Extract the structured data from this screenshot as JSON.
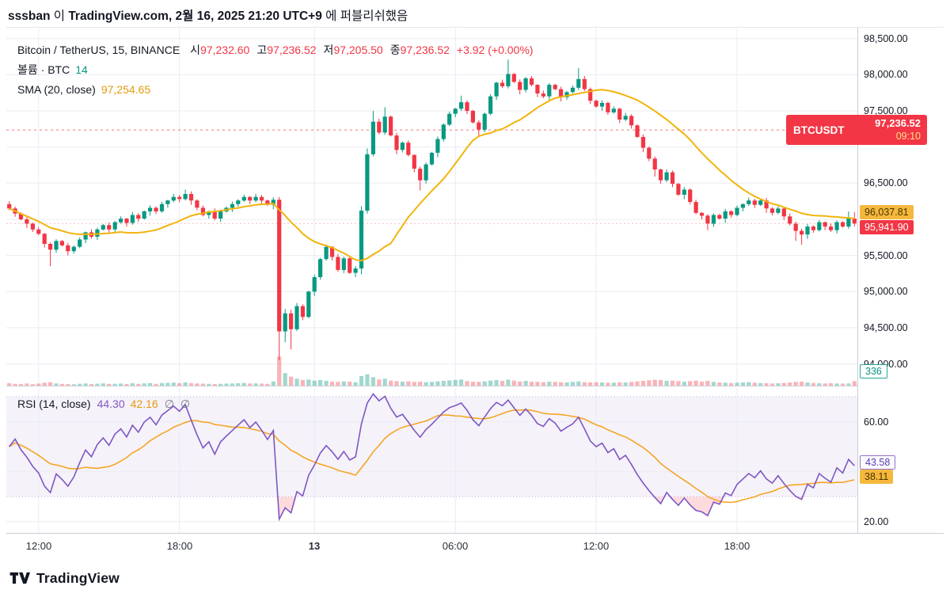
{
  "header": {
    "author": "sssban",
    "particle1": "이",
    "source": "TradingView.com, 2월 16, 2025 21:20 UTC+9",
    "particle2": "에 퍼블리쉬했음"
  },
  "legend": {
    "symbol": "Bitcoin / TetherUS, 15, BINANCE",
    "ohlc": {
      "o_l": "시",
      "o_v": "97,232.60",
      "h_l": "고",
      "h_v": "97,236.52",
      "l_l": "저",
      "l_v": "97,205.50",
      "c_l": "종",
      "c_v": "97,236.52",
      "chg": "+3.92 (+0.00%)"
    },
    "volume_label": "볼륨 · BTC",
    "volume_value": "14",
    "sma_label": "SMA (20, close)",
    "sma_value": "97,254.65"
  },
  "rsi_legend": {
    "label": "RSI (14, close)",
    "v1": "44.30",
    "v2": "42.16",
    "empty1": "∅",
    "empty2": "∅"
  },
  "axis": {
    "badge_symbol": "BTCUSDT",
    "badge_price": "97,236.52",
    "badge_countdown": "09:10",
    "sma_label": "96,037.81",
    "last_price": "95,941.90",
    "volume": "336",
    "rsi_value": "43.58",
    "rsi_ma_value": "38.11"
  },
  "footer": {
    "brand": "TradingView"
  },
  "colors": {
    "up": "#089981",
    "down": "#f23645",
    "sma_line": "#f2b40c",
    "rsi_line": "#7e57c2",
    "rsi_ma_line": "#f5a623",
    "badge_bg": "#f23645"
  },
  "chart_data": {
    "type": "candlestick",
    "title": "Bitcoin / TetherUS, 15, BINANCE",
    "symbol": "BTCUSDT",
    "interval_minutes": 15,
    "exchange": "BINANCE",
    "x_labels": [
      {
        "i": 5,
        "t": "12:00"
      },
      {
        "i": 29,
        "t": "18:00"
      },
      {
        "i": 52,
        "t": "13",
        "strong": true
      },
      {
        "i": 76,
        "t": "06:00"
      },
      {
        "i": 100,
        "t": "12:00"
      },
      {
        "i": 124,
        "t": "18:00"
      }
    ],
    "main": {
      "price_min": 93700,
      "price_max": 98650,
      "first_open": 96210,
      "sma_period": 20,
      "closes": [
        96150,
        96080,
        96000,
        95940,
        95860,
        95800,
        95660,
        95580,
        95700,
        95640,
        95560,
        95620,
        95720,
        95820,
        95760,
        95860,
        95920,
        95860,
        95960,
        96010,
        95950,
        96060,
        96010,
        96110,
        96160,
        96110,
        96210,
        96260,
        96310,
        96280,
        96350,
        96260,
        96160,
        96060,
        96110,
        96010,
        96110,
        96160,
        96210,
        96260,
        96310,
        96260,
        96310,
        96260,
        96200,
        96270,
        94450,
        94700,
        94480,
        94800,
        94650,
        95000,
        95200,
        95450,
        95620,
        95480,
        95300,
        95460,
        95260,
        95320,
        96120,
        96900,
        97350,
        97200,
        97420,
        97160,
        96960,
        97060,
        96890,
        96700,
        96540,
        96760,
        96920,
        97110,
        97310,
        97460,
        97530,
        97620,
        97500,
        97340,
        97240,
        97460,
        97700,
        97890,
        97840,
        98010,
        97900,
        97790,
        97950,
        97860,
        97740,
        97700,
        97860,
        97800,
        97690,
        97760,
        97820,
        97940,
        97800,
        97640,
        97560,
        97610,
        97480,
        97530,
        97380,
        97430,
        97300,
        97140,
        96990,
        96840,
        96690,
        96540,
        96650,
        96490,
        96340,
        96410,
        96240,
        96090,
        96050,
        95940,
        96060,
        96010,
        96110,
        96060,
        96160,
        96210,
        96260,
        96200,
        96260,
        96150,
        96090,
        96150,
        96040,
        95940,
        95840,
        95790,
        95900,
        95850,
        95960,
        95900,
        95850,
        95960,
        95900,
        96010,
        95941.9
      ],
      "volumes": [
        180,
        140,
        120,
        160,
        110,
        150,
        220,
        260,
        170,
        130,
        120,
        100,
        140,
        160,
        120,
        150,
        170,
        130,
        140,
        160,
        120,
        180,
        130,
        170,
        190,
        140,
        200,
        210,
        230,
        180,
        240,
        190,
        160,
        150,
        130,
        120,
        140,
        150,
        160,
        180,
        200,
        160,
        170,
        150,
        140,
        320,
        2200,
        950,
        680,
        520,
        430,
        460,
        380,
        420,
        360,
        300,
        280,
        320,
        300,
        260,
        720,
        860,
        640,
        470,
        520,
        380,
        340,
        300,
        320,
        280,
        300,
        260,
        280,
        320,
        360,
        400,
        430,
        460,
        340,
        300,
        280,
        320,
        380,
        420,
        360,
        450,
        380,
        320,
        360,
        300,
        280,
        260,
        300,
        280,
        260,
        240,
        280,
        320,
        260,
        240,
        260,
        240,
        220,
        230,
        260,
        240,
        280,
        320,
        360,
        400,
        440,
        420,
        360,
        380,
        340,
        300,
        340,
        380,
        300,
        360,
        280,
        240,
        220,
        200,
        220,
        240,
        260,
        220,
        200,
        180,
        160,
        180,
        200,
        240,
        280,
        300,
        240,
        200,
        180,
        160,
        180,
        160,
        150,
        170,
        336
      ],
      "vol_max": 2400,
      "wick_pattern": [
        25,
        45,
        15,
        60,
        35,
        20,
        50
      ],
      "wick_overrides": {
        "7": [
          20,
          230
        ],
        "30": [
          60,
          20
        ],
        "46": [
          40,
          400
        ],
        "47": [
          60,
          150
        ],
        "48": [
          50,
          280
        ],
        "60": [
          60,
          80
        ],
        "61": [
          80,
          40
        ],
        "62": [
          150,
          30
        ],
        "64": [
          130,
          30
        ],
        "70": [
          30,
          140
        ],
        "77": [
          90,
          30
        ],
        "80": [
          30,
          90
        ],
        "85": [
          200,
          30
        ],
        "97": [
          150,
          30
        ],
        "110": [
          30,
          100
        ],
        "119": [
          20,
          90
        ],
        "134": [
          30,
          140
        ],
        "135": [
          30,
          140
        ],
        "143": [
          100,
          30
        ],
        "144": [
          90,
          40
        ]
      },
      "grid_levels": [
        94000,
        94500,
        95000,
        95500,
        96000,
        96500,
        97000,
        97500,
        98000,
        98500
      ],
      "yticks": [
        {
          "p": 98500,
          "label": "98,500.00"
        },
        {
          "p": 98000,
          "label": "98,000.00"
        },
        {
          "p": 97500,
          "label": "97,500.00"
        },
        {
          "p": 96500,
          "label": "96,500.00"
        },
        {
          "p": 95500,
          "label": "95,500.00"
        },
        {
          "p": 95000,
          "label": "95,000.00"
        },
        {
          "p": 94500,
          "label": "94,500.00"
        },
        {
          "p": 94000,
          "label": "94,000.00"
        }
      ],
      "price_lines": {
        "realtime": 97236.52,
        "last_close": 95941.9
      },
      "overlay_labels": {
        "sma_value": 96037.81,
        "last_close": 95941.9
      }
    },
    "rsi": {
      "period": 14,
      "ma_period": 14,
      "r_min": 15.5,
      "r_max": 73.5,
      "band": [
        30,
        70
      ],
      "grid_levels": [
        60,
        40,
        20
      ],
      "yticks": [
        {
          "v": 60,
          "label": "60.00"
        },
        {
          "v": 20,
          "label": "20.00"
        }
      ],
      "seed_avg_gain": 40,
      "seed_avg_loss": 30,
      "last_value": 43.58,
      "ma_last_value": 38.11
    }
  }
}
